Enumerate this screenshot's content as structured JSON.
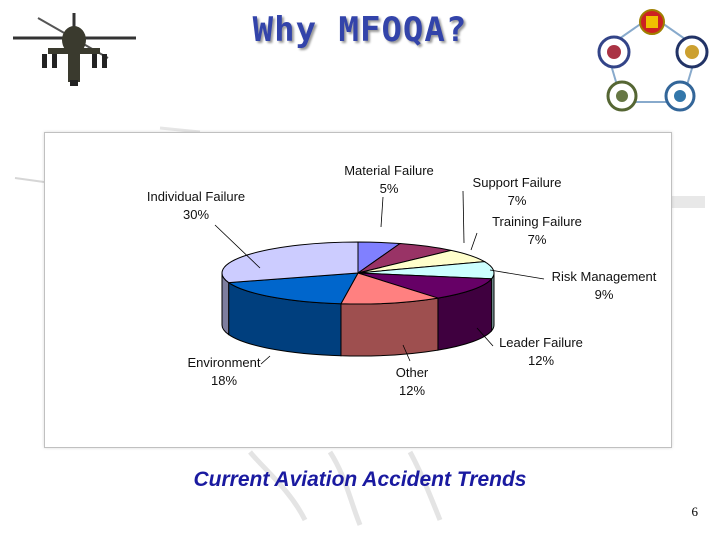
{
  "slide": {
    "title": "Why MFOQA?",
    "caption": "Current Aviation Accident Trends",
    "page_number": "6",
    "title_color": "#3344aa",
    "caption_color": "#1a1aa0"
  },
  "images": {
    "left": "helicopter-icon",
    "right": "unit-seals-emblem"
  },
  "chart_data": {
    "type": "pie",
    "title": "",
    "slices": [
      {
        "name": "Material Failure",
        "label": "5%",
        "value": 5,
        "color": "#8080ff"
      },
      {
        "name": "Support Failure",
        "label": "7%",
        "value": 7,
        "color": "#993366"
      },
      {
        "name": "Training Failure",
        "label": "7%",
        "value": 7,
        "color": "#ffffcc"
      },
      {
        "name": "Risk Management",
        "label": "9%",
        "value": 9,
        "color": "#ccffff"
      },
      {
        "name": "Leader Failure",
        "label": "12%",
        "value": 12,
        "color": "#660066"
      },
      {
        "name": "Other",
        "label": "12%",
        "value": 12,
        "color": "#ff8080"
      },
      {
        "name": "Environment",
        "label": "18%",
        "value": 18,
        "color": "#0066cc"
      },
      {
        "name": "Individual Failure",
        "label": "30%",
        "value": 30,
        "color": "#ccccff"
      }
    ]
  }
}
